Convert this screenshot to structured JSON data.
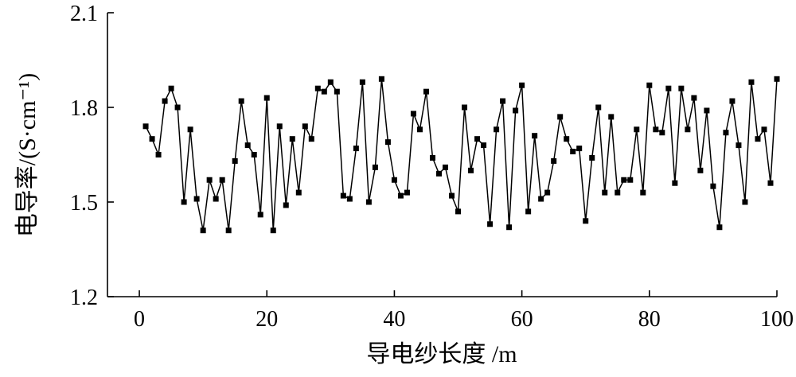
{
  "chart_data": {
    "type": "line",
    "title": "",
    "xlabel": "导电纱长度 /m",
    "ylabel": "电导率/(S·cm⁻¹)",
    "xlim": [
      -5,
      100
    ],
    "ylim": [
      1.2,
      2.1
    ],
    "xticks": [
      "0",
      "20",
      "40",
      "60",
      "80",
      "100"
    ],
    "yticks": [
      "1.2",
      "1.5",
      "1.8",
      "2.1"
    ],
    "grid": false,
    "marker": "square",
    "series": [
      {
        "x": [
          1,
          2,
          3,
          4,
          5,
          6,
          7,
          8,
          9,
          10,
          11,
          12,
          13,
          14,
          15,
          16,
          17,
          18,
          19,
          20,
          21,
          22,
          23,
          24,
          25,
          26,
          27,
          28,
          29,
          30,
          31,
          32,
          33,
          34,
          35,
          36,
          37,
          38,
          39,
          40,
          41,
          42,
          43,
          44,
          45,
          46,
          47,
          48,
          49,
          50,
          51,
          52,
          53,
          54,
          55,
          56,
          57,
          58,
          59,
          60,
          61,
          62,
          63,
          64,
          65,
          66,
          67,
          68,
          69,
          70,
          71,
          72,
          73,
          74,
          75,
          76,
          77,
          78,
          79,
          80,
          81,
          82,
          83,
          84,
          85,
          86,
          87,
          88,
          89,
          90,
          91,
          92,
          93,
          94,
          95,
          96,
          97,
          98,
          99,
          100
        ],
        "values": [
          1.74,
          1.7,
          1.65,
          1.82,
          1.86,
          1.8,
          1.5,
          1.73,
          1.51,
          1.41,
          1.57,
          1.51,
          1.57,
          1.41,
          1.63,
          1.82,
          1.68,
          1.65,
          1.46,
          1.83,
          1.41,
          1.74,
          1.49,
          1.7,
          1.53,
          1.74,
          1.7,
          1.86,
          1.85,
          1.88,
          1.85,
          1.52,
          1.51,
          1.67,
          1.88,
          1.5,
          1.61,
          1.89,
          1.69,
          1.57,
          1.52,
          1.53,
          1.78,
          1.73,
          1.85,
          1.64,
          1.59,
          1.61,
          1.52,
          1.47,
          1.8,
          1.6,
          1.7,
          1.68,
          1.43,
          1.73,
          1.82,
          1.42,
          1.79,
          1.87,
          1.47,
          1.71,
          1.51,
          1.53,
          1.63,
          1.77,
          1.7,
          1.66,
          1.67,
          1.44,
          1.64,
          1.8,
          1.53,
          1.77,
          1.53,
          1.57,
          1.57,
          1.73,
          1.53,
          1.87,
          1.73,
          1.72,
          1.86,
          1.56,
          1.86,
          1.73,
          1.83,
          1.6,
          1.79,
          1.55,
          1.42,
          1.72,
          1.82,
          1.68,
          1.5,
          1.88,
          1.7,
          1.73,
          1.56,
          1.89
        ]
      }
    ]
  }
}
